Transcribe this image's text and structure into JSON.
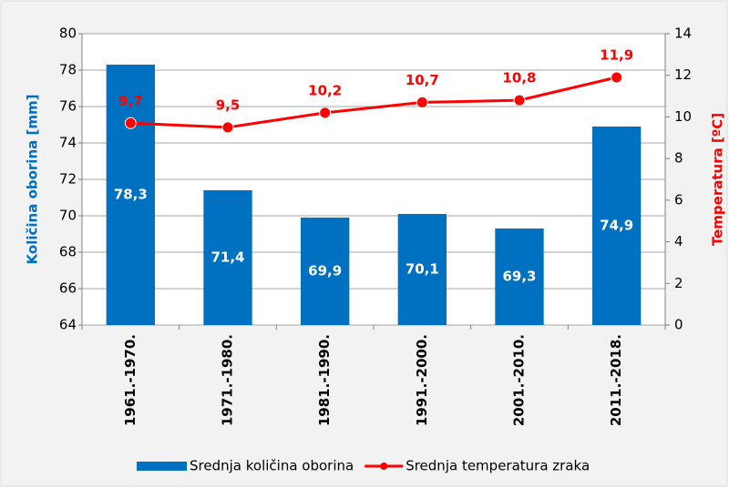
{
  "chart_data": {
    "type": "bar",
    "categories": [
      "1961.-1970.",
      "1971.-1980.",
      "1981.-1990.",
      "1991.-2000.",
      "2001.-2010.",
      "2011.-2018."
    ],
    "series": [
      {
        "name": "Srednja količina oborina",
        "color": "#0070c0",
        "type": "bar",
        "values": [
          78.3,
          71.4,
          69.9,
          70.1,
          69.3,
          74.9
        ],
        "value_labels": [
          "78,3",
          "71,4",
          "69,9",
          "70,1",
          "69,3",
          "74,9"
        ]
      },
      {
        "name": "Srednja temperatura zraka",
        "color": "#ff0000",
        "type": "line",
        "axis": "y2",
        "values": [
          9.7,
          9.5,
          10.2,
          10.7,
          10.8,
          11.9
        ],
        "value_labels": [
          "9,7",
          "9,5",
          "10,2",
          "10,7",
          "10,8",
          "11,9"
        ]
      }
    ],
    "ylabel": "Količina oborina [mm]",
    "y2label": "Temperatura [ºC]",
    "ylim": [
      64,
      80
    ],
    "yticks": [
      64,
      66,
      68,
      70,
      72,
      74,
      76,
      78,
      80
    ],
    "y2lim": [
      0,
      14
    ],
    "y2ticks": [
      0,
      2,
      4,
      6,
      8,
      10,
      12,
      14
    ],
    "grid": true,
    "legend": "bottom"
  }
}
